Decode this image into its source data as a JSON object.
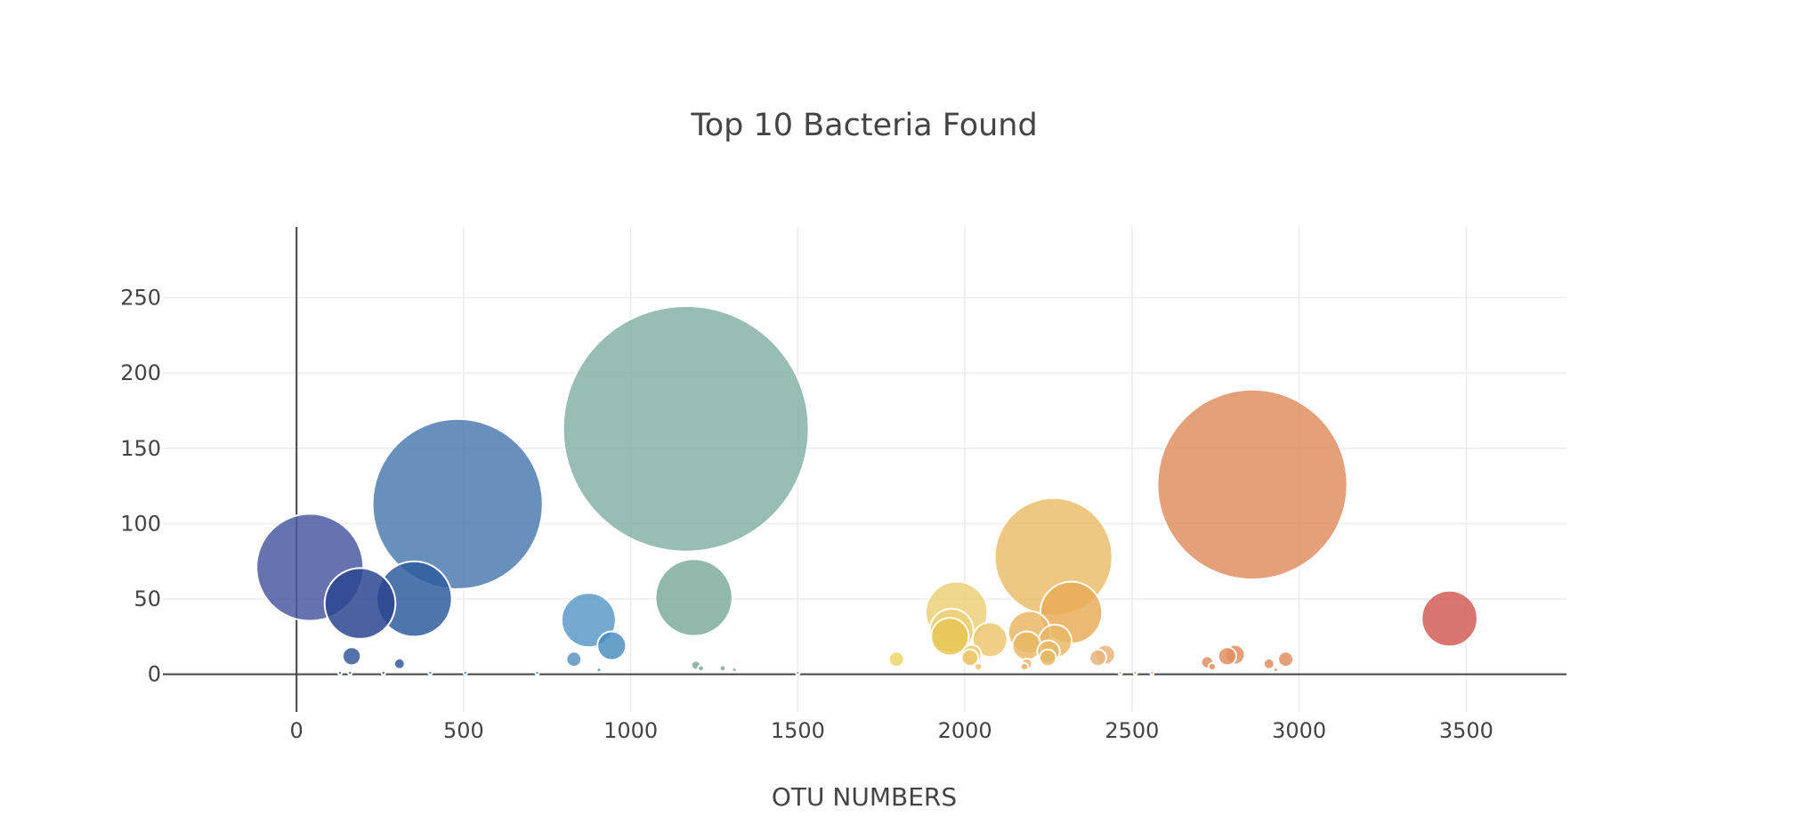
{
  "chart_data": {
    "type": "scatter",
    "title": "Top 10 Bacteria Found",
    "xlabel": "OTU NUMBERS",
    "ylabel": "",
    "xlim": [
      -400,
      3800
    ],
    "ylim": [
      -25,
      297
    ],
    "xticks": [
      0,
      500,
      1000,
      1500,
      2000,
      2500,
      3000,
      3500
    ],
    "yticks": [
      0,
      50,
      100,
      150,
      200,
      250
    ],
    "grid": true,
    "legend": "none",
    "marker_size_encodes": "y",
    "series": [
      {
        "values": [
          {
            "x": 40,
            "y": 71,
            "color": "#4b5ba0"
          },
          {
            "x": 482,
            "y": 113,
            "color": "#4f7bb0"
          },
          {
            "x": 190,
            "y": 47,
            "color": "#2b478f"
          },
          {
            "x": 352,
            "y": 50,
            "color": "#2f5d9e"
          },
          {
            "x": 165,
            "y": 12,
            "color": "#36589a"
          },
          {
            "x": 308,
            "y": 7,
            "color": "#36589a"
          },
          {
            "x": 1165,
            "y": 163,
            "color": "#86b1a4"
          },
          {
            "x": 1189,
            "y": 51,
            "color": "#7fac9c"
          },
          {
            "x": 874,
            "y": 36,
            "color": "#5d9ac8"
          },
          {
            "x": 943,
            "y": 19,
            "color": "#4e8fc0"
          },
          {
            "x": 830,
            "y": 10,
            "color": "#5d94c2"
          },
          {
            "x": 1195,
            "y": 6,
            "color": "#7fac9c"
          },
          {
            "x": 1210,
            "y": 4,
            "color": "#7fac9c"
          },
          {
            "x": 1275,
            "y": 4,
            "color": "#7fac9c"
          },
          {
            "x": 1310,
            "y": 3,
            "color": "#7fac9c"
          },
          {
            "x": 1795,
            "y": 10,
            "color": "#eed36a"
          },
          {
            "x": 1975,
            "y": 41,
            "color": "#ecd07a"
          },
          {
            "x": 1960,
            "y": 29,
            "color": "#ecd07a"
          },
          {
            "x": 1955,
            "y": 25,
            "color": "#e8c553"
          },
          {
            "x": 2075,
            "y": 23,
            "color": "#ecc770"
          },
          {
            "x": 2020,
            "y": 13,
            "color": "#ecc770"
          },
          {
            "x": 2015,
            "y": 11,
            "color": "#ecc770"
          },
          {
            "x": 2040,
            "y": 5,
            "color": "#ecc770"
          },
          {
            "x": 2265,
            "y": 78,
            "color": "#ebbd6d"
          },
          {
            "x": 2318,
            "y": 41,
            "color": "#e8ad58"
          },
          {
            "x": 2193,
            "y": 28,
            "color": "#e9b766"
          },
          {
            "x": 2185,
            "y": 19,
            "color": "#e9b766"
          },
          {
            "x": 2270,
            "y": 22,
            "color": "#e9b766"
          },
          {
            "x": 2250,
            "y": 15,
            "color": "#e9b766"
          },
          {
            "x": 2248,
            "y": 11,
            "color": "#e9b766"
          },
          {
            "x": 2185,
            "y": 7,
            "color": "#e9b766"
          },
          {
            "x": 2178,
            "y": 5,
            "color": "#e9b766"
          },
          {
            "x": 2420,
            "y": 13,
            "color": "#eab47a"
          },
          {
            "x": 2398,
            "y": 11,
            "color": "#eab47a"
          },
          {
            "x": 2860,
            "y": 126,
            "color": "#e08e62"
          },
          {
            "x": 2808,
            "y": 13,
            "color": "#e08e62"
          },
          {
            "x": 2785,
            "y": 12,
            "color": "#e08e62"
          },
          {
            "x": 2960,
            "y": 10,
            "color": "#e08e62"
          },
          {
            "x": 2725,
            "y": 8,
            "color": "#e08e62"
          },
          {
            "x": 2910,
            "y": 7,
            "color": "#e08e62"
          },
          {
            "x": 2740,
            "y": 5,
            "color": "#e08e62"
          },
          {
            "x": 3450,
            "y": 37,
            "color": "#d25d58"
          },
          {
            "x": 130,
            "y": 1,
            "color": "#4b5ba0"
          },
          {
            "x": 160,
            "y": 1,
            "color": "#4b5ba0"
          },
          {
            "x": 260,
            "y": 1,
            "color": "#4b5ba0"
          },
          {
            "x": 400,
            "y": 1,
            "color": "#4f7bb0"
          },
          {
            "x": 505,
            "y": 1,
            "color": "#4f7bb0"
          },
          {
            "x": 720,
            "y": 1,
            "color": "#5d94c2"
          },
          {
            "x": 905,
            "y": 3,
            "color": "#5d94c2"
          },
          {
            "x": 1500,
            "y": 1,
            "color": "#86b1a4"
          },
          {
            "x": 2465,
            "y": 1,
            "color": "#eab47a"
          },
          {
            "x": 2510,
            "y": 1,
            "color": "#eab47a"
          },
          {
            "x": 2560,
            "y": 1,
            "color": "#eab47a"
          },
          {
            "x": 2930,
            "y": 3,
            "color": "#e08e62"
          }
        ]
      }
    ]
  }
}
